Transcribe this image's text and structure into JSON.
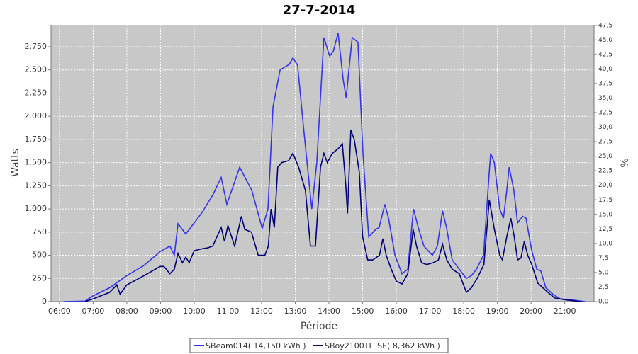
{
  "chart_data": {
    "type": "line",
    "title": "27-7-2014",
    "xlabel": "Période",
    "ylabel": "Watts",
    "y2label": "%",
    "xlim": [
      5.75,
      21.87
    ],
    "ylim": [
      0,
      2987
    ],
    "y2lim": [
      0,
      47.6
    ],
    "grid": true,
    "legend": "bottom",
    "xticks": [
      {
        "value": 6,
        "label": "06:00"
      },
      {
        "value": 7,
        "label": "07:00"
      },
      {
        "value": 8,
        "label": "08:00"
      },
      {
        "value": 9,
        "label": "09:00"
      },
      {
        "value": 10,
        "label": "10:00"
      },
      {
        "value": 11,
        "label": "11:00"
      },
      {
        "value": 12,
        "label": "12:00"
      },
      {
        "value": 13,
        "label": "13:00"
      },
      {
        "value": 14,
        "label": "14:00"
      },
      {
        "value": 15,
        "label": "15:00"
      },
      {
        "value": 16,
        "label": "16:00"
      },
      {
        "value": 17,
        "label": "17:00"
      },
      {
        "value": 18,
        "label": "18:00"
      },
      {
        "value": 19,
        "label": "19:00"
      },
      {
        "value": 20,
        "label": "20:00"
      },
      {
        "value": 21,
        "label": "21:00"
      }
    ],
    "yticks": [
      0,
      250,
      500,
      750,
      {
        "value": 1000,
        "label": "1.000"
      },
      {
        "value": 1250,
        "label": "1.250"
      },
      {
        "value": 1500,
        "label": "1.500"
      },
      {
        "value": 1750,
        "label": "1.750"
      },
      {
        "value": 2000,
        "label": "2.000"
      },
      {
        "value": 2250,
        "label": "2.250"
      },
      {
        "value": 2500,
        "label": "2.500"
      },
      {
        "value": 2750,
        "label": "2.750"
      }
    ],
    "y2ticks": [
      {
        "value": 0,
        "label": "0,0"
      },
      {
        "value": 2.5,
        "label": "2,5"
      },
      {
        "value": 5,
        "label": "5,0"
      },
      {
        "value": 7.5,
        "label": "7,5"
      },
      {
        "value": 10,
        "label": "10,0"
      },
      {
        "value": 12.5,
        "label": "12,5"
      },
      {
        "value": 15,
        "label": "15,0"
      },
      {
        "value": 17.5,
        "label": "17,5"
      },
      {
        "value": 20,
        "label": "20,0"
      },
      {
        "value": 22.5,
        "label": "22,5"
      },
      {
        "value": 25,
        "label": "25,0"
      },
      {
        "value": 27.5,
        "label": "27,5"
      },
      {
        "value": 30,
        "label": "30,0"
      },
      {
        "value": 32.5,
        "label": "32,5"
      },
      {
        "value": 35,
        "label": "35,0"
      },
      {
        "value": 37.5,
        "label": "37,5"
      },
      {
        "value": 40,
        "label": "40,0"
      },
      {
        "value": 42.5,
        "label": "42,5"
      },
      {
        "value": 45,
        "label": "45,0"
      },
      {
        "value": 47.5,
        "label": "47,5"
      }
    ],
    "series": [
      {
        "name": "SBeam014( 14,150 kWh )",
        "color": "#3535e8",
        "x": [
          6.13,
          6.76,
          6.99,
          7.49,
          8.0,
          8.51,
          8.99,
          9.28,
          9.41,
          9.52,
          9.75,
          10.23,
          10.55,
          10.8,
          10.97,
          11.35,
          11.71,
          12.02,
          12.19,
          12.34,
          12.55,
          12.82,
          12.93,
          13.07,
          13.24,
          13.49,
          13.64,
          13.85,
          14.02,
          14.13,
          14.27,
          14.42,
          14.51,
          14.69,
          14.86,
          15.01,
          15.18,
          15.39,
          15.49,
          15.66,
          15.77,
          15.96,
          16.17,
          16.34,
          16.51,
          16.65,
          16.82,
          17.07,
          17.22,
          17.37,
          17.49,
          17.66,
          17.87,
          18.08,
          18.23,
          18.38,
          18.59,
          18.76,
          18.8,
          18.91,
          19.07,
          19.18,
          19.28,
          19.35,
          19.49,
          19.6,
          19.75,
          19.85,
          20.02,
          20.17,
          20.29,
          20.44,
          20.65,
          20.86,
          21.18,
          21.6
        ],
        "values": [
          0,
          5,
          60,
          150,
          280,
          390,
          540,
          600,
          500,
          840,
          730,
          960,
          1150,
          1340,
          1050,
          1450,
          1200,
          790,
          1000,
          2100,
          2500,
          2560,
          2630,
          2550,
          1900,
          1000,
          1500,
          2850,
          2650,
          2700,
          2900,
          2400,
          2200,
          2850,
          2800,
          1600,
          700,
          780,
          800,
          1050,
          900,
          500,
          300,
          350,
          1000,
          800,
          600,
          500,
          600,
          980,
          800,
          450,
          350,
          250,
          280,
          350,
          500,
          1400,
          1600,
          1500,
          1000,
          900,
          1200,
          1450,
          1200,
          850,
          920,
          900,
          550,
          350,
          330,
          150,
          80,
          30,
          20,
          0
        ]
      },
      {
        "name": "SBoy2100TL_SE( 8,362 kWh )",
        "color": "#00007a",
        "x": [
          6.76,
          7.0,
          7.49,
          7.7,
          7.8,
          8.0,
          8.51,
          8.99,
          9.1,
          9.28,
          9.41,
          9.52,
          9.65,
          9.75,
          9.85,
          10.0,
          10.23,
          10.4,
          10.55,
          10.8,
          10.9,
          11.0,
          11.2,
          11.4,
          11.5,
          11.7,
          11.9,
          12.1,
          12.2,
          12.28,
          12.38,
          12.48,
          12.6,
          12.8,
          12.93,
          13.1,
          13.3,
          13.45,
          13.6,
          13.75,
          13.85,
          13.95,
          14.1,
          14.27,
          14.4,
          14.5,
          14.55,
          14.65,
          14.75,
          14.9,
          15.0,
          15.15,
          15.3,
          15.5,
          15.6,
          15.7,
          15.85,
          16.0,
          16.17,
          16.34,
          16.5,
          16.6,
          16.75,
          16.9,
          17.1,
          17.25,
          17.37,
          17.5,
          17.66,
          17.87,
          18.08,
          18.23,
          18.4,
          18.6,
          18.76,
          18.9,
          19.07,
          19.15,
          19.28,
          19.4,
          19.5,
          19.6,
          19.7,
          19.8,
          19.9,
          20.02,
          20.2,
          20.35,
          20.5,
          20.7,
          21.0,
          21.5
        ],
        "values": [
          0,
          30,
          100,
          180,
          80,
          180,
          280,
          380,
          380,
          300,
          350,
          520,
          420,
          480,
          420,
          550,
          570,
          580,
          600,
          800,
          650,
          820,
          600,
          920,
          780,
          750,
          500,
          500,
          600,
          1000,
          800,
          1450,
          1500,
          1520,
          1600,
          1450,
          1200,
          600,
          600,
          1450,
          1600,
          1500,
          1600,
          1650,
          1700,
          1250,
          950,
          1850,
          1750,
          1400,
          700,
          450,
          450,
          500,
          680,
          500,
          350,
          220,
          190,
          300,
          780,
          600,
          420,
          400,
          420,
          450,
          620,
          450,
          350,
          300,
          100,
          150,
          250,
          400,
          1100,
          800,
          500,
          450,
          700,
          900,
          700,
          450,
          470,
          650,
          500,
          400,
          200,
          150,
          100,
          40,
          20,
          0
        ]
      }
    ]
  }
}
